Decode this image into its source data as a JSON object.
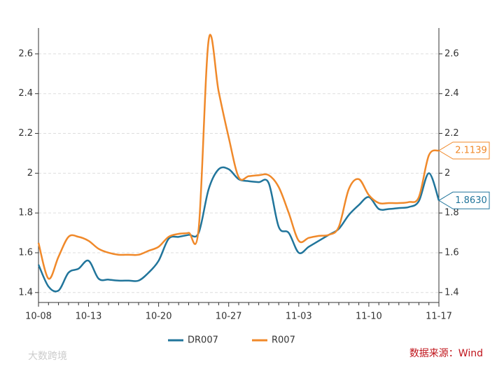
{
  "chart_data": {
    "type": "line",
    "categories": [
      "10-08",
      null,
      null,
      null,
      null,
      "10-13",
      null,
      null,
      null,
      null,
      null,
      null,
      "10-20",
      null,
      null,
      null,
      null,
      null,
      null,
      "10-27",
      null,
      null,
      null,
      null,
      null,
      null,
      "11-03",
      null,
      null,
      null,
      null,
      null,
      null,
      "11-10",
      null,
      null,
      null,
      null,
      null,
      null,
      "11-17"
    ],
    "series": [
      {
        "name": "DR007",
        "color": "#21759b",
        "values": [
          1.54,
          1.43,
          1.41,
          1.5,
          1.52,
          1.56,
          1.47,
          1.465,
          1.46,
          1.46,
          1.46,
          1.5,
          1.56,
          1.67,
          1.68,
          1.69,
          1.7,
          1.92,
          2.02,
          2.02,
          1.97,
          1.96,
          1.955,
          1.95,
          1.73,
          1.7,
          1.6,
          1.63,
          1.66,
          1.69,
          1.72,
          1.79,
          1.84,
          1.88,
          1.82,
          1.82,
          1.825,
          1.83,
          1.86,
          2.0,
          1.863
        ],
        "value_labels": [
          null,
          null,
          null,
          null,
          null,
          null,
          null,
          null,
          null,
          null,
          null,
          null,
          null,
          null,
          null,
          null,
          null,
          null,
          null,
          null,
          null,
          null,
          null,
          null,
          null,
          null,
          null,
          null,
          null,
          null,
          null,
          null,
          null,
          null,
          null,
          null,
          null,
          null,
          null,
          null,
          "1.8630"
        ]
      },
      {
        "name": "R007",
        "color": "#f0892a",
        "values": [
          1.65,
          1.47,
          1.58,
          1.68,
          1.68,
          1.66,
          1.62,
          1.6,
          1.59,
          1.59,
          1.59,
          1.61,
          1.63,
          1.68,
          1.695,
          1.7,
          1.72,
          2.67,
          2.41,
          2.18,
          1.98,
          1.985,
          1.99,
          1.99,
          1.93,
          1.8,
          1.66,
          1.675,
          1.685,
          1.69,
          1.73,
          1.92,
          1.97,
          1.89,
          1.85,
          1.85,
          1.85,
          1.855,
          1.88,
          2.09,
          2.1139
        ],
        "value_labels": [
          null,
          null,
          null,
          null,
          null,
          null,
          null,
          null,
          null,
          null,
          null,
          null,
          null,
          null,
          null,
          null,
          null,
          null,
          null,
          null,
          null,
          null,
          null,
          null,
          null,
          null,
          null,
          null,
          null,
          null,
          null,
          null,
          null,
          null,
          null,
          null,
          null,
          null,
          null,
          null,
          "2.1139"
        ]
      }
    ],
    "ylim": [
      1.35,
      2.73
    ],
    "yticks": [
      1.4,
      1.6,
      1.8,
      2,
      2.2,
      2.4,
      2.6
    ],
    "y2lim": [
      1.35,
      2.73
    ],
    "y2ticks": [
      1.4,
      1.6,
      1.8,
      2,
      2.2,
      2.4,
      2.6
    ],
    "grid": true,
    "legend": "bottom",
    "source": "数据来源：Wind",
    "watermark": "大数跨境"
  }
}
